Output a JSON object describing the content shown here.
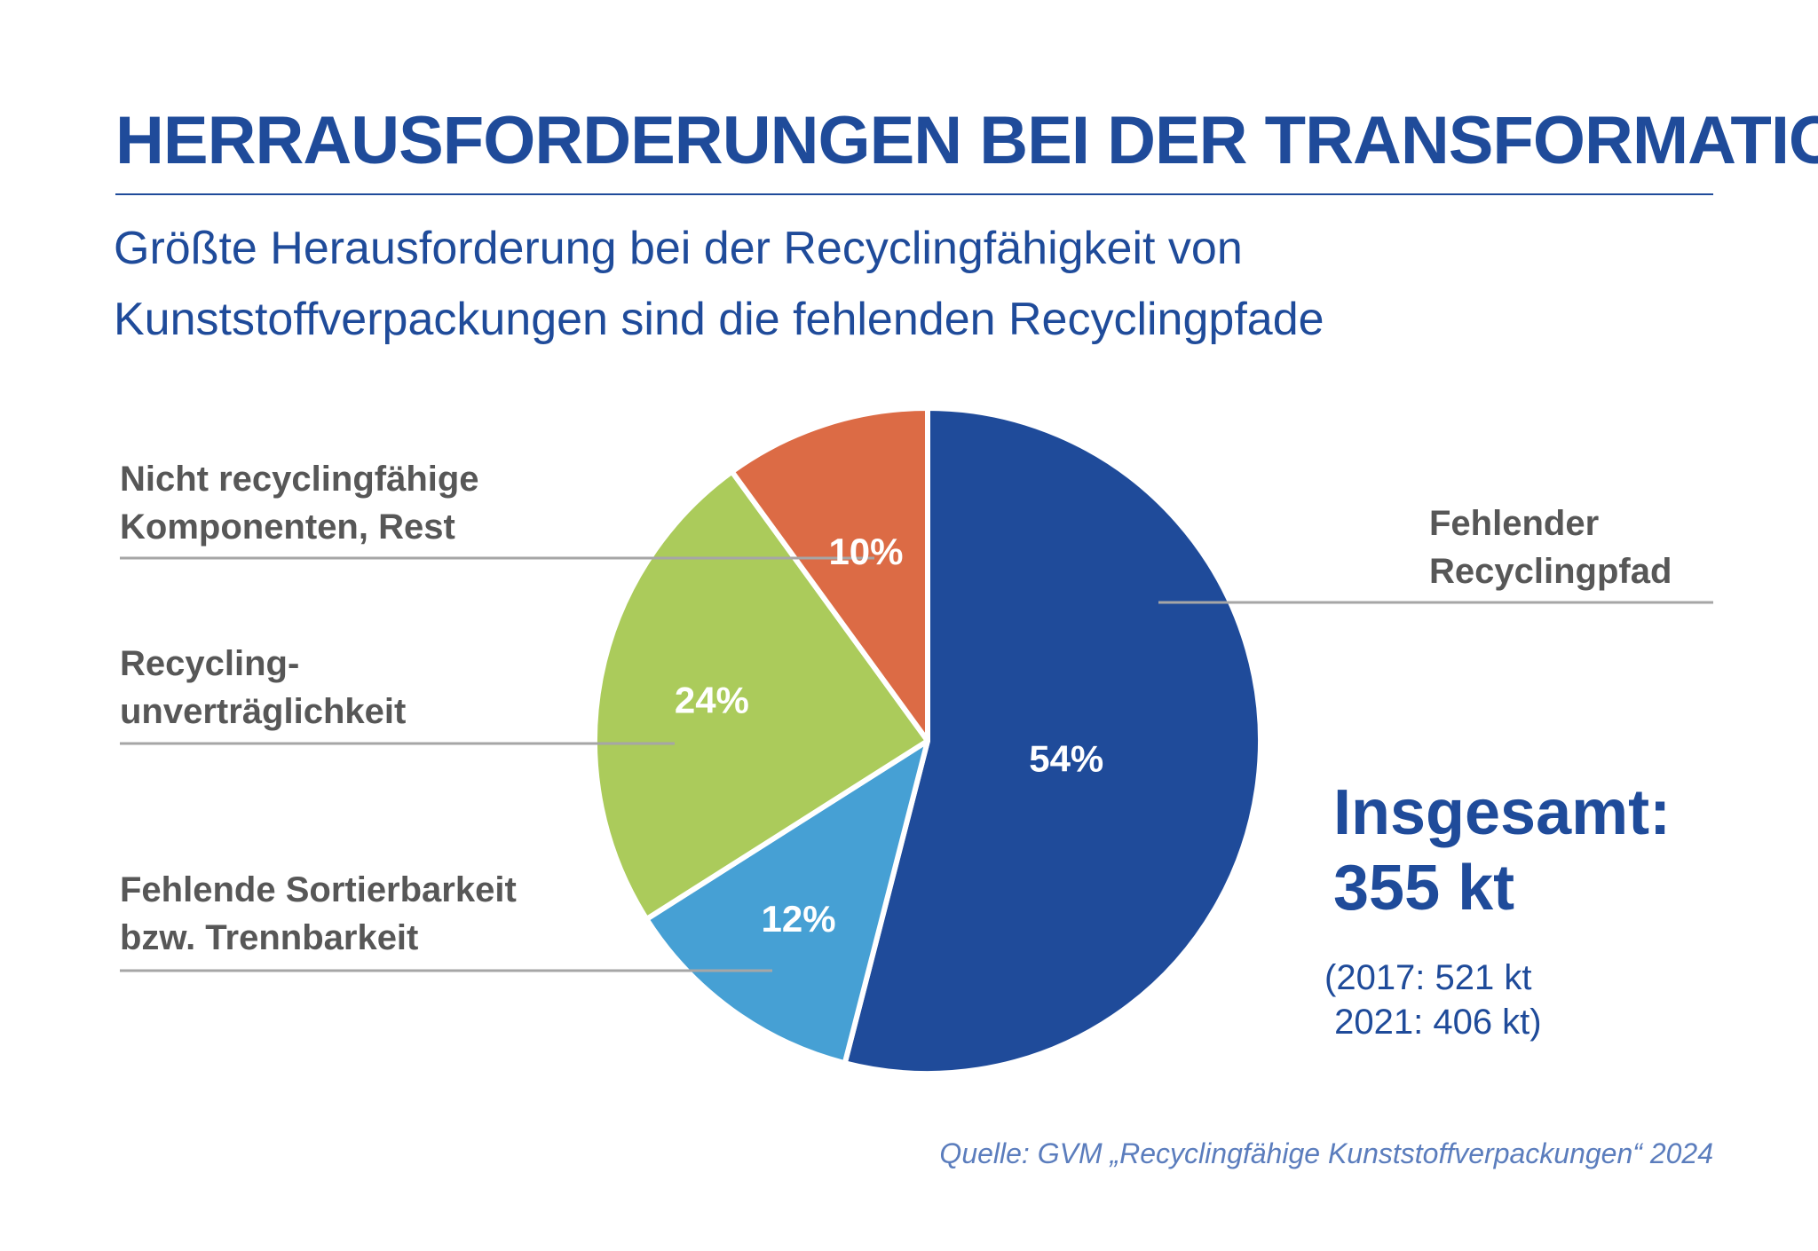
{
  "header": {
    "title": "HERRAUSFORDERUNGEN BEI DER TRANSFORMATION",
    "subtitle_line1": "Größte Herausforderung bei der Recyclingfähigkeit von",
    "subtitle_line2": "Kunststoffverpackungen sind die fehlenden Recyclingpfade"
  },
  "chart_data": {
    "type": "pie",
    "title": "",
    "slices": [
      {
        "label_line1": "Fehlender",
        "label_line2": "Recyclingpfad",
        "value": 54,
        "display": "54%",
        "color": "#1f4b9a"
      },
      {
        "label_line1": "Fehlende Sortierbarkeit",
        "label_line2": "bzw. Trennbarkeit",
        "value": 12,
        "display": "12%",
        "color": "#46a0d4"
      },
      {
        "label_line1": "Recycling-",
        "label_line2": "unverträglichkeit",
        "value": 24,
        "display": "24%",
        "color": "#abcb5b"
      },
      {
        "label_line1": "Nicht recyclingfähige",
        "label_line2": "Komponenten, Rest",
        "value": 10,
        "display": "10%",
        "color": "#dc6b45"
      }
    ]
  },
  "summary": {
    "total_label": "Insgesamt:",
    "total_value": "355 kt",
    "history_line1": "(2017: 521 kt",
    "history_line2": " 2021: 406 kt)"
  },
  "source": "Quelle: GVM „Recyclingfähige Kunststoffverpackungen“ 2024",
  "colors": {
    "accent": "#1f4b9a",
    "label_text": "#575757",
    "leader_line": "#a6a6a6"
  }
}
